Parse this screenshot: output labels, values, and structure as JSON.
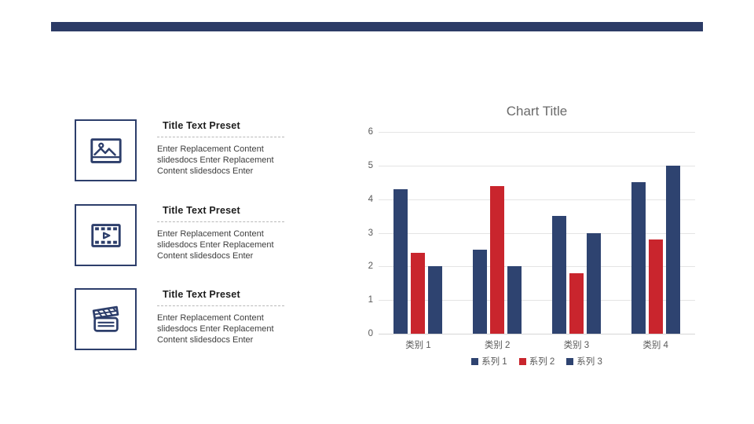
{
  "page": {
    "background": "#ffffff",
    "accent_navy": "#2c3b66",
    "accent_red": "#c9252d"
  },
  "features": {
    "items": [
      {
        "icon": "picture-icon",
        "title": "Title Text Preset",
        "body": "Enter Replacement Content slidesdocs Enter Replacement Content slidesdocs Enter"
      },
      {
        "icon": "film-strip-icon",
        "title": "Title Text Preset",
        "body": "Enter Replacement Content slidesdocs Enter Replacement Content slidesdocs Enter"
      },
      {
        "icon": "clapperboard-icon",
        "title": "Title Text Preset",
        "body": "Enter Replacement Content slidesdocs Enter Replacement Content slidesdocs Enter"
      }
    ]
  },
  "chart_data": {
    "type": "bar",
    "title": "Chart Title",
    "categories": [
      "类别 1",
      "类别 2",
      "类别 3",
      "类别 4"
    ],
    "series": [
      {
        "name": "系列 1",
        "color": "#2e4370",
        "values": [
          4.3,
          2.5,
          3.5,
          4.5
        ]
      },
      {
        "name": "系列 2",
        "color": "#c9252d",
        "values": [
          2.4,
          4.4,
          1.8,
          2.8
        ]
      },
      {
        "name": "系列 3",
        "color": "#2e4370",
        "values": [
          2.0,
          2.0,
          3.0,
          5.0
        ]
      }
    ],
    "ylim": [
      0,
      6
    ],
    "yticks": [
      0,
      1,
      2,
      3,
      4,
      5,
      6
    ],
    "grid": true,
    "legend_position": "bottom"
  }
}
